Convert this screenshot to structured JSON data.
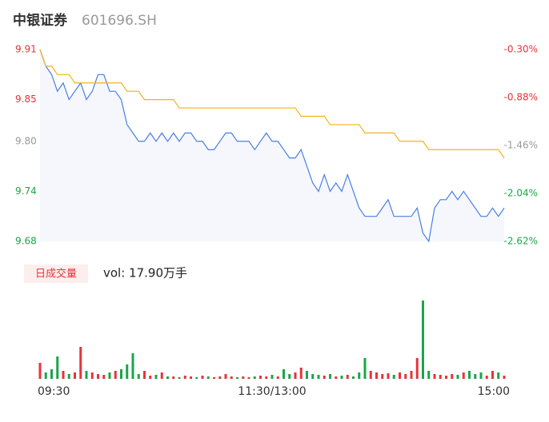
{
  "chart_data": [
    {
      "type": "line",
      "title": "中银证券",
      "subtitle": "601696.SH",
      "up_color": "#e8333a",
      "down_color": "#1aa54a",
      "flat_color": "#999999",
      "ylim": [
        9.68,
        9.91
      ],
      "yticks": [
        9.91,
        9.85,
        "9.80",
        9.74,
        9.68
      ],
      "y2lim": [
        -2.62,
        -0.3
      ],
      "y2ticks": [
        {
          "value": -0.3,
          "label": "-0.30%"
        },
        {
          "value": -0.88,
          "label": "-0.88%"
        },
        {
          "value": -1.46,
          "label": "-1.46%"
        },
        {
          "value": -2.04,
          "label": "-2.04%"
        },
        {
          "value": -2.62,
          "label": "-2.62%"
        }
      ],
      "series": [
        {
          "name": "price",
          "color": "#4a7fe0",
          "values": [
            9.91,
            9.89,
            9.88,
            9.86,
            9.87,
            9.85,
            9.86,
            9.87,
            9.85,
            9.86,
            9.88,
            9.88,
            9.86,
            9.86,
            9.85,
            9.82,
            9.81,
            9.8,
            9.8,
            9.81,
            9.8,
            9.81,
            9.8,
            9.81,
            9.8,
            9.81,
            9.81,
            9.8,
            9.8,
            9.79,
            9.79,
            9.8,
            9.81,
            9.81,
            9.8,
            9.8,
            9.8,
            9.79,
            9.8,
            9.81,
            9.8,
            9.8,
            9.79,
            9.78,
            9.78,
            9.79,
            9.77,
            9.75,
            9.74,
            9.76,
            9.74,
            9.75,
            9.74,
            9.76,
            9.74,
            9.72,
            9.71,
            9.71,
            9.71,
            9.72,
            9.73,
            9.71,
            9.71,
            9.71,
            9.71,
            9.72,
            9.69,
            9.68,
            9.72,
            9.73,
            9.73,
            9.74,
            9.73,
            9.74,
            9.73,
            9.72,
            9.71,
            9.71,
            9.72,
            9.71,
            9.72
          ]
        },
        {
          "name": "average",
          "color": "#f5b21b",
          "values": [
            9.91,
            9.89,
            9.89,
            9.88,
            9.88,
            9.88,
            9.87,
            9.87,
            9.87,
            9.87,
            9.87,
            9.87,
            9.87,
            9.87,
            9.87,
            9.86,
            9.86,
            9.86,
            9.85,
            9.85,
            9.85,
            9.85,
            9.85,
            9.85,
            9.84,
            9.84,
            9.84,
            9.84,
            9.84,
            9.84,
            9.84,
            9.84,
            9.84,
            9.84,
            9.84,
            9.84,
            9.84,
            9.84,
            9.84,
            9.84,
            9.84,
            9.84,
            9.84,
            9.84,
            9.84,
            9.83,
            9.83,
            9.83,
            9.83,
            9.83,
            9.82,
            9.82,
            9.82,
            9.82,
            9.82,
            9.82,
            9.81,
            9.81,
            9.81,
            9.81,
            9.81,
            9.81,
            9.8,
            9.8,
            9.8,
            9.8,
            9.8,
            9.79,
            9.79,
            9.79,
            9.79,
            9.79,
            9.79,
            9.79,
            9.79,
            9.79,
            9.79,
            9.79,
            9.79,
            9.79,
            9.78
          ]
        }
      ]
    },
    {
      "type": "bar",
      "title": "日成交量",
      "subtitle": "vol: 17.90万手",
      "categories": [
        "09:30",
        null,
        null,
        null,
        null,
        null,
        null,
        null,
        null,
        null,
        null,
        null,
        null,
        null,
        null,
        null,
        null,
        null,
        null,
        null,
        null,
        null,
        null,
        null,
        null,
        null,
        null,
        null,
        null,
        null,
        null,
        null,
        null,
        null,
        null,
        null,
        null,
        null,
        null,
        null,
        "11:30/13:00",
        null,
        null,
        null,
        null,
        null,
        null,
        null,
        null,
        null,
        null,
        null,
        null,
        null,
        null,
        null,
        null,
        null,
        null,
        null,
        null,
        null,
        null,
        null,
        null,
        null,
        null,
        null,
        null,
        null,
        null,
        null,
        null,
        null,
        null,
        null,
        null,
        null,
        null,
        null,
        "15:00"
      ],
      "values": [
        20,
        8,
        12,
        28,
        10,
        6,
        8,
        40,
        10,
        8,
        6,
        5,
        8,
        10,
        12,
        18,
        32,
        6,
        10,
        4,
        5,
        8,
        3,
        3,
        2,
        4,
        3,
        2,
        4,
        3,
        2,
        3,
        6,
        3,
        2,
        3,
        2,
        3,
        4,
        3,
        5,
        3,
        12,
        6,
        8,
        14,
        10,
        6,
        5,
        4,
        6,
        3,
        4,
        5,
        3,
        8,
        26,
        10,
        8,
        6,
        7,
        5,
        8,
        6,
        10,
        26,
        98,
        10,
        6,
        5,
        4,
        6,
        5,
        8,
        10,
        6,
        8,
        4,
        10,
        8,
        4
      ]
    }
  ]
}
